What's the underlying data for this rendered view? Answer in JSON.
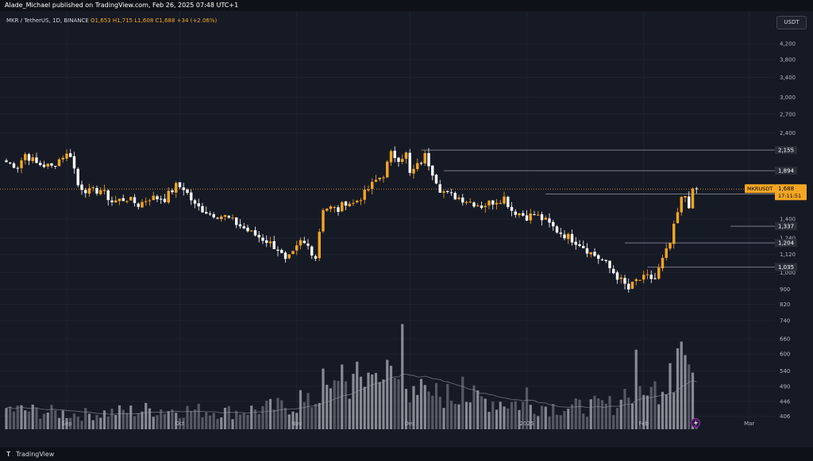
{
  "header": {
    "published": "Alade_Michael published on TradingView.com, Feb 26, 2025 07:48 UTC+1"
  },
  "symbol": {
    "name": "MKR / TetherUS, 1D, BINANCE",
    "ohlc": "O1,653 H1,715 L1,608 C1,688 +34 (+2.06%)"
  },
  "currency": "USDT",
  "footer": {
    "brand": "TradingView",
    "logo_icon": "tradingview-logo-icon"
  },
  "colors": {
    "up": "#f5a623",
    "down": "#ffffff",
    "bg": "#161a25",
    "level": "#787b86"
  },
  "chart_data": {
    "type": "candlestick",
    "symbol": "MKRUSDT",
    "timeframe": "1D",
    "y_scale": "log",
    "ylim": [
      380,
      4900
    ],
    "grid": true,
    "x_tick_labels": [
      "Sep",
      "Oct",
      "Nov",
      "Dec",
      "2025",
      "Feb",
      "Mar"
    ],
    "x_tick_positions": [
      16,
      46,
      77,
      107,
      138,
      169,
      197
    ],
    "y_tick_labels": [
      "4,200",
      "3,800",
      "3,400",
      "3,000",
      "2,700",
      "2,400",
      "1,400",
      "1,240",
      "1,120",
      "1,000",
      "900",
      "820",
      "740",
      "660",
      "600",
      "540",
      "490",
      "446",
      "406"
    ],
    "y_tick_values": [
      4200,
      3800,
      3400,
      3000,
      2700,
      2400,
      1400,
      1240,
      1120,
      1000,
      900,
      820,
      740,
      660,
      600,
      540,
      490,
      446,
      406
    ],
    "current_price": {
      "label": "MKRUSDT",
      "value": "1,688",
      "countdown": "17:11:51"
    },
    "levels": [
      {
        "value": 2155,
        "label": "2,155",
        "start_index": 110
      },
      {
        "value": 1894,
        "label": "1,894",
        "start_index": 116
      },
      {
        "value": 1636,
        "label": "1,636",
        "start_index": 143
      },
      {
        "value": 1337,
        "label": "1,337",
        "start_index": 192
      },
      {
        "value": 1204,
        "label": "1,204",
        "start_index": 164
      },
      {
        "value": 1035,
        "label": "1,035",
        "start_index": 170
      }
    ],
    "close_anchors": [
      [
        0,
        2000
      ],
      [
        3,
        1950
      ],
      [
        5,
        2100
      ],
      [
        8,
        1980
      ],
      [
        12,
        1940
      ],
      [
        15,
        2080
      ],
      [
        17,
        2100
      ],
      [
        19,
        1730
      ],
      [
        22,
        1660
      ],
      [
        25,
        1680
      ],
      [
        28,
        1560
      ],
      [
        32,
        1590
      ],
      [
        35,
        1530
      ],
      [
        38,
        1600
      ],
      [
        42,
        1590
      ],
      [
        45,
        1720
      ],
      [
        47,
        1700
      ],
      [
        50,
        1520
      ],
      [
        54,
        1450
      ],
      [
        58,
        1420
      ],
      [
        61,
        1360
      ],
      [
        65,
        1280
      ],
      [
        69,
        1220
      ],
      [
        72,
        1160
      ],
      [
        74,
        1070
      ],
      [
        76,
        1120
      ],
      [
        78,
        1210
      ],
      [
        80,
        1180
      ],
      [
        82,
        1100
      ],
      [
        84,
        1500
      ],
      [
        86,
        1500
      ],
      [
        88,
        1480
      ],
      [
        90,
        1560
      ],
      [
        92,
        1540
      ],
      [
        95,
        1640
      ],
      [
        98,
        1780
      ],
      [
        100,
        1850
      ],
      [
        102,
        2100
      ],
      [
        104,
        2050
      ],
      [
        106,
        2100
      ],
      [
        107,
        1850
      ],
      [
        109,
        1950
      ],
      [
        111,
        2080
      ],
      [
        113,
        1880
      ],
      [
        115,
        1690
      ],
      [
        117,
        1630
      ],
      [
        120,
        1600
      ],
      [
        123,
        1560
      ],
      [
        126,
        1520
      ],
      [
        129,
        1560
      ],
      [
        132,
        1600
      ],
      [
        134,
        1480
      ],
      [
        138,
        1420
      ],
      [
        140,
        1440
      ],
      [
        143,
        1380
      ],
      [
        146,
        1300
      ],
      [
        149,
        1250
      ],
      [
        152,
        1200
      ],
      [
        155,
        1130
      ],
      [
        158,
        1080
      ],
      [
        161,
        1000
      ],
      [
        163,
        950
      ],
      [
        165,
        900
      ],
      [
        167,
        950
      ],
      [
        170,
        970
      ],
      [
        172,
        960
      ],
      [
        174,
        1080
      ],
      [
        176,
        1200
      ],
      [
        178,
        1450
      ],
      [
        179,
        1580
      ],
      [
        180,
        1620
      ],
      [
        181,
        1530
      ],
      [
        182,
        1653
      ],
      [
        183,
        1688
      ]
    ],
    "volume_anchors": [
      [
        0,
        150
      ],
      [
        20,
        110
      ],
      [
        40,
        150
      ],
      [
        60,
        130
      ],
      [
        80,
        190
      ],
      [
        90,
        330
      ],
      [
        100,
        410
      ],
      [
        105,
        350
      ],
      [
        110,
        270
      ],
      [
        120,
        240
      ],
      [
        130,
        210
      ],
      [
        140,
        180
      ],
      [
        150,
        160
      ],
      [
        160,
        180
      ],
      [
        170,
        240
      ],
      [
        176,
        420
      ],
      [
        180,
        560
      ],
      [
        183,
        60
      ]
    ],
    "volume_spikes": [
      [
        78,
        290
      ],
      [
        84,
        450
      ],
      [
        85,
        330
      ],
      [
        89,
        480
      ],
      [
        94,
        390
      ],
      [
        96,
        420
      ],
      [
        99,
        350
      ],
      [
        105,
        780
      ],
      [
        108,
        320
      ],
      [
        112,
        280
      ],
      [
        121,
        390
      ],
      [
        138,
        310
      ],
      [
        164,
        300
      ],
      [
        167,
        590
      ],
      [
        170,
        250
      ],
      [
        176,
        490
      ],
      [
        178,
        600
      ],
      [
        179,
        650
      ],
      [
        180,
        550
      ],
      [
        181,
        480
      ],
      [
        182,
        420
      ]
    ]
  }
}
